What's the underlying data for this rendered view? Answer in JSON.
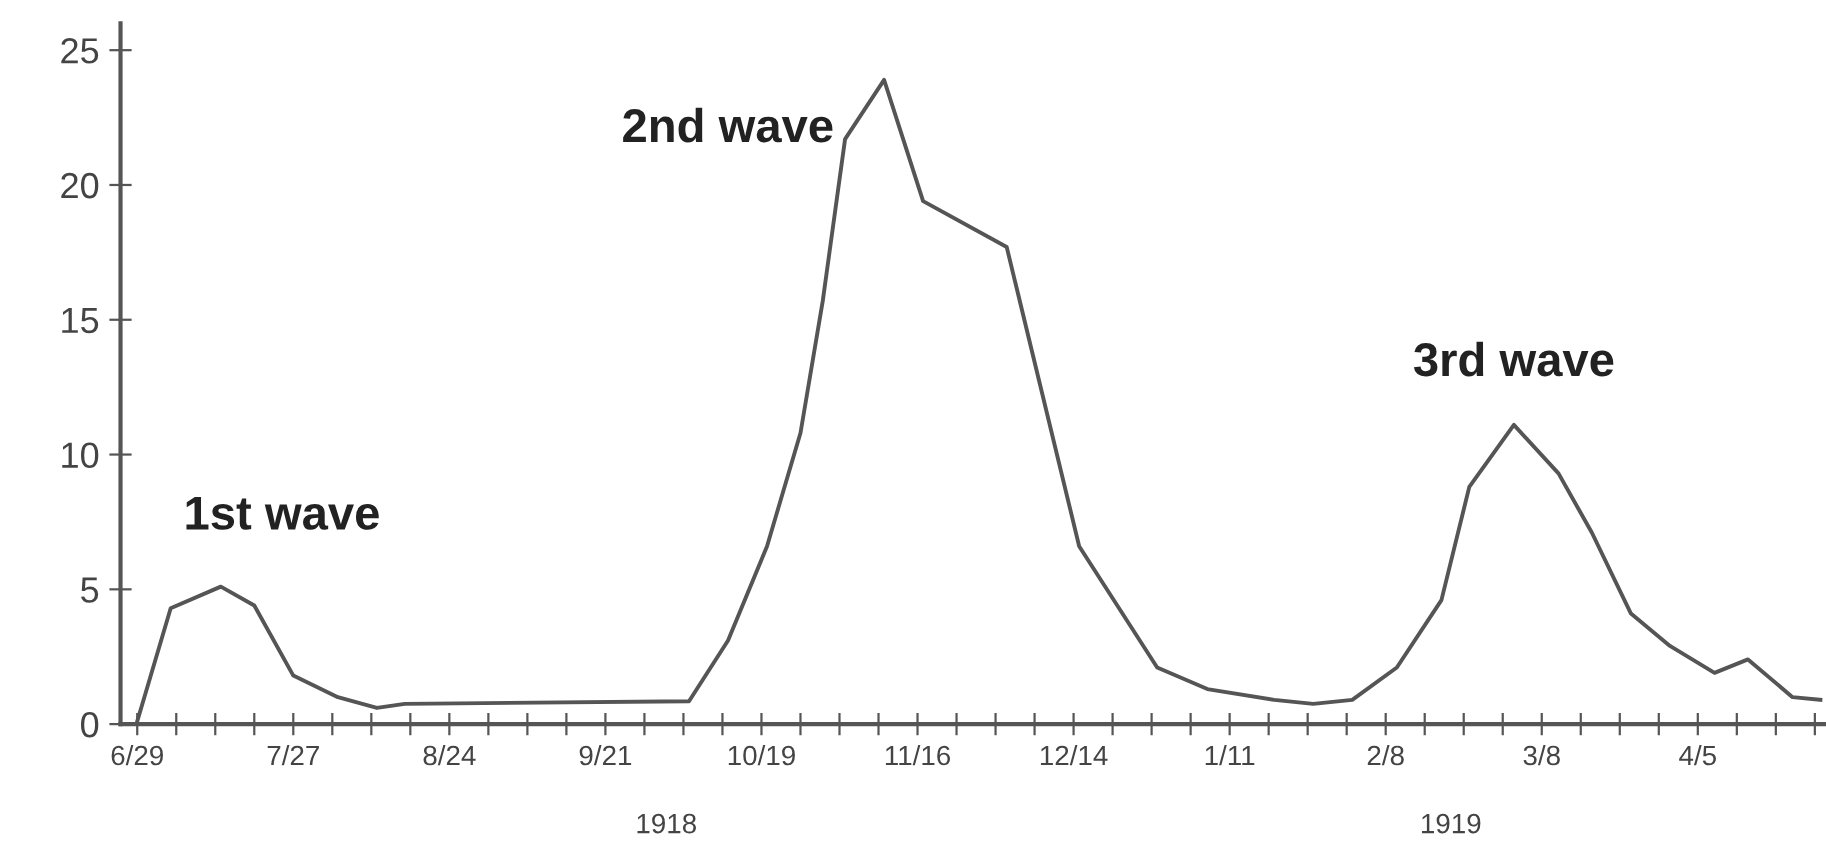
{
  "chart_data": {
    "type": "line",
    "x": [
      "1918-06-29",
      "1918-07-05",
      "1918-07-14",
      "1918-07-20",
      "1918-07-27",
      "1918-08-04",
      "1918-08-11",
      "1918-08-16",
      "1918-10-06",
      "1918-10-13",
      "1918-10-20",
      "1918-10-26",
      "1918-10-30",
      "1918-11-03",
      "1918-11-10",
      "1918-11-17",
      "1918-12-02",
      "1918-12-15",
      "1918-12-29",
      "1919-01-07",
      "1919-01-19",
      "1919-01-26",
      "1919-02-02",
      "1919-02-10",
      "1919-02-18",
      "1919-02-23",
      "1919-03-03",
      "1919-03-11",
      "1919-03-17",
      "1919-03-24",
      "1919-03-31",
      "1919-04-08",
      "1919-04-14",
      "1919-04-22",
      "1919-04-27"
    ],
    "series": [
      {
        "color": "#555555",
        "values": [
          0.1,
          4.3,
          5.1,
          4.4,
          1.8,
          1.0,
          0.6,
          0.75,
          0.85,
          3.1,
          6.6,
          10.8,
          15.7,
          21.7,
          23.9,
          19.4,
          17.7,
          6.6,
          2.1,
          1.3,
          0.9,
          0.75,
          0.9,
          2.1,
          4.6,
          8.8,
          11.1,
          9.3,
          7.1,
          4.1,
          2.9,
          1.9,
          2.4,
          1.0,
          0.9
        ]
      }
    ],
    "xlim": [
      "1918-06-26",
      "1919-04-28"
    ],
    "ylim": [
      0,
      26
    ],
    "yticks": [
      0,
      5,
      10,
      15,
      20,
      25
    ],
    "xticks": [
      {
        "value": "1918-06-29",
        "label": "6/29"
      },
      {
        "value": "1918-07-06",
        "label": null
      },
      {
        "value": "1918-07-13",
        "label": null
      },
      {
        "value": "1918-07-20",
        "label": null
      },
      {
        "value": "1918-07-27",
        "label": "7/27"
      },
      {
        "value": "1918-08-03",
        "label": null
      },
      {
        "value": "1918-08-10",
        "label": null
      },
      {
        "value": "1918-08-17",
        "label": null
      },
      {
        "value": "1918-08-24",
        "label": "8/24"
      },
      {
        "value": "1918-08-31",
        "label": null
      },
      {
        "value": "1918-09-07",
        "label": null
      },
      {
        "value": "1918-09-14",
        "label": null
      },
      {
        "value": "1918-09-21",
        "label": "9/21"
      },
      {
        "value": "1918-09-28",
        "label": null
      },
      {
        "value": "1918-10-05",
        "label": null
      },
      {
        "value": "1918-10-12",
        "label": null
      },
      {
        "value": "1918-10-19",
        "label": "10/19"
      },
      {
        "value": "1918-10-26",
        "label": null
      },
      {
        "value": "1918-11-02",
        "label": null
      },
      {
        "value": "1918-11-09",
        "label": null
      },
      {
        "value": "1918-11-16",
        "label": "11/16"
      },
      {
        "value": "1918-11-23",
        "label": null
      },
      {
        "value": "1918-11-30",
        "label": null
      },
      {
        "value": "1918-12-07",
        "label": null
      },
      {
        "value": "1918-12-14",
        "label": "12/14"
      },
      {
        "value": "1918-12-21",
        "label": null
      },
      {
        "value": "1918-12-28",
        "label": null
      },
      {
        "value": "1919-01-04",
        "label": null
      },
      {
        "value": "1919-01-11",
        "label": "1/11"
      },
      {
        "value": "1919-01-18",
        "label": null
      },
      {
        "value": "1919-01-25",
        "label": null
      },
      {
        "value": "1919-02-01",
        "label": null
      },
      {
        "value": "1919-02-08",
        "label": "2/8"
      },
      {
        "value": "1919-02-15",
        "label": null
      },
      {
        "value": "1919-02-22",
        "label": null
      },
      {
        "value": "1919-03-01",
        "label": null
      },
      {
        "value": "1919-03-08",
        "label": "3/8"
      },
      {
        "value": "1919-03-15",
        "label": null
      },
      {
        "value": "1919-03-22",
        "label": null
      },
      {
        "value": "1919-03-29",
        "label": null
      },
      {
        "value": "1919-04-05",
        "label": "4/5"
      },
      {
        "value": "1919-04-12",
        "label": null
      },
      {
        "value": "1919-04-19",
        "label": null
      },
      {
        "value": "1919-04-26",
        "label": null
      }
    ],
    "annotations": [
      {
        "text": "1st wave",
        "x": "1918-07-14",
        "y": 5.1
      },
      {
        "text": "2nd wave",
        "x": "1918-11-10",
        "y": 23.9
      },
      {
        "text": "3rd wave",
        "x": "1919-03-03",
        "y": 11.1
      },
      "1918",
      "1919"
    ],
    "grid": false,
    "legend": false,
    "marker": "none",
    "line_style": "solid"
  }
}
